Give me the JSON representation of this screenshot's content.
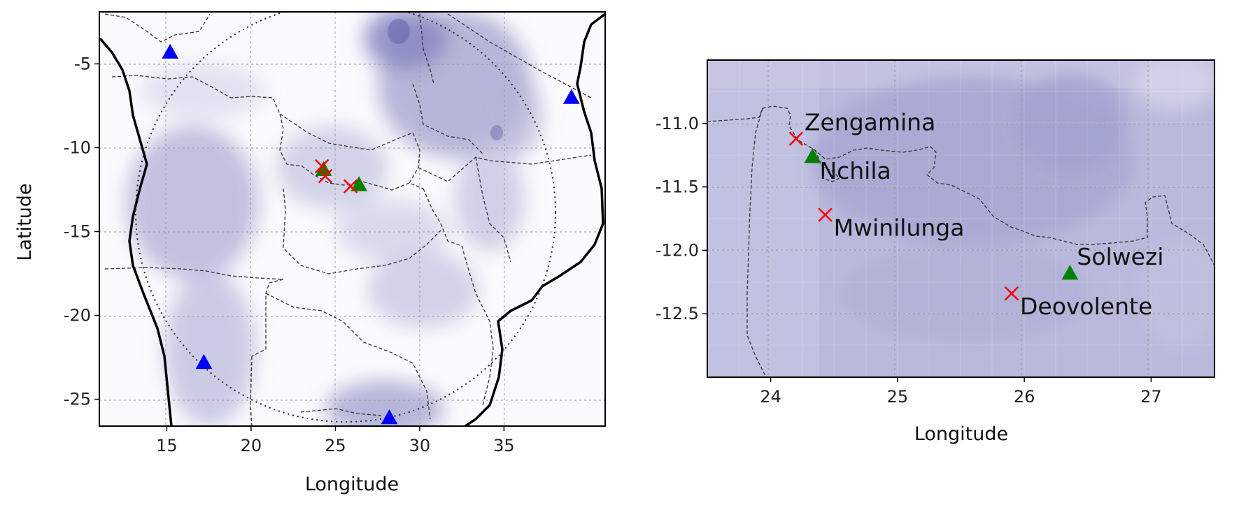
{
  "chart_data": [
    {
      "type": "map",
      "name": "overview-map",
      "xlabel": "Longitude",
      "ylabel": "Latitude",
      "xlim": [
        11.0,
        41.0
      ],
      "ylim": [
        -26.6,
        -1.9
      ],
      "xticks": [
        15,
        20,
        25,
        30,
        35
      ],
      "yticks": [
        -5,
        -10,
        -15,
        -20,
        -25
      ],
      "grid": true,
      "background": "gridded field, white to dark purple",
      "series": [
        {
          "marker": "triangle",
          "color": "#0000ff",
          "points": [
            {
              "lon": 15.2,
              "lat": -4.3
            },
            {
              "lon": 39.0,
              "lat": -7.0
            },
            {
              "lon": 17.2,
              "lat": -22.8
            },
            {
              "lon": 28.2,
              "lat": -26.1
            }
          ]
        },
        {
          "marker": "triangle",
          "color": "#008000",
          "points": [
            {
              "lon": 24.3,
              "lat": -11.3
            },
            {
              "lon": 26.4,
              "lat": -12.2
            }
          ]
        },
        {
          "marker": "x",
          "color": "#ff0000",
          "points": [
            {
              "lon": 24.2,
              "lat": -11.1
            },
            {
              "lon": 24.4,
              "lat": -11.7
            },
            {
              "lon": 25.9,
              "lat": -12.3
            }
          ]
        }
      ]
    },
    {
      "type": "map",
      "name": "zoom-map",
      "xlabel": "Longitude",
      "ylabel": "",
      "xlim": [
        23.5,
        27.5
      ],
      "ylim": [
        -13.0,
        -10.5
      ],
      "xticks": [
        24,
        25,
        26,
        27
      ],
      "yticks": [
        -11.0,
        -11.5,
        -12.0,
        -12.5
      ],
      "ytick_labels": [
        "-11.0",
        "-11.5",
        "-12.0",
        "-12.5"
      ],
      "grid": true,
      "background": "gridded field, light purple",
      "series": [
        {
          "marker": "x",
          "color": "#ff0000",
          "points": [
            {
              "lon": 24.2,
              "lat": -11.12,
              "label": "Zengamina"
            },
            {
              "lon": 24.43,
              "lat": -11.72,
              "label": "Mwinilunga"
            },
            {
              "lon": 25.9,
              "lat": -12.34,
              "label": "Deovolente"
            }
          ]
        },
        {
          "marker": "triangle",
          "color": "#008000",
          "points": [
            {
              "lon": 24.33,
              "lat": -11.26,
              "label": "Nchila"
            },
            {
              "lon": 26.36,
              "lat": -12.18,
              "label": "Solwezi"
            }
          ]
        }
      ]
    }
  ]
}
